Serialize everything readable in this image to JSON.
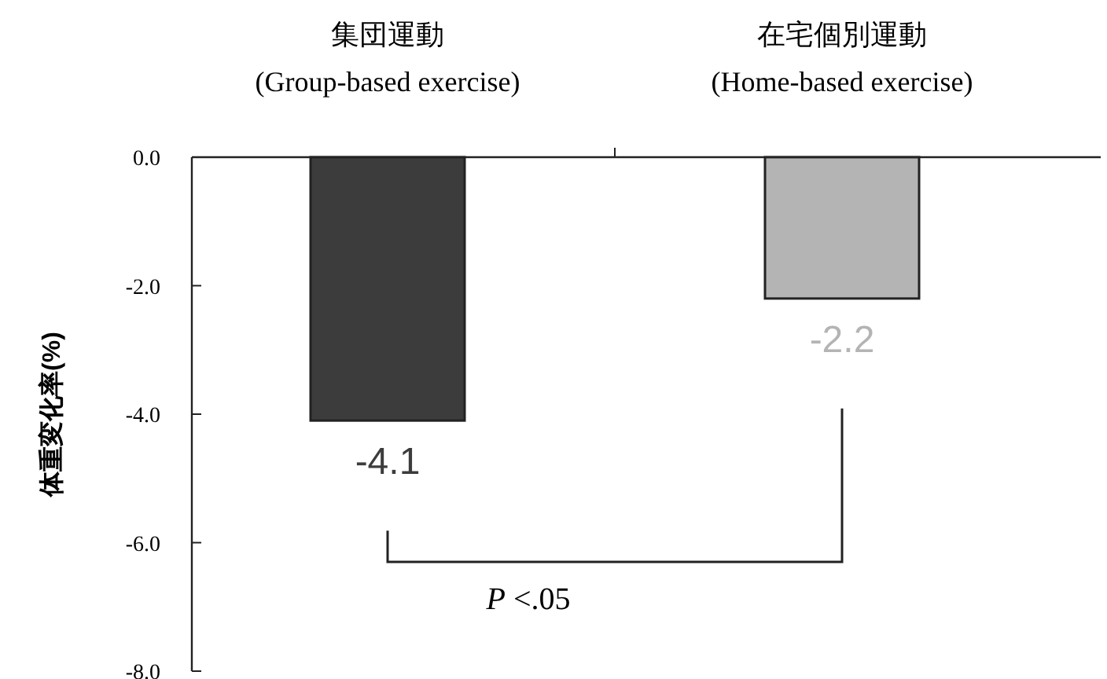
{
  "chart_data": {
    "type": "bar",
    "categories": [
      "集団運動\n(Group-based exercise)",
      "在宅個別運動\n(Home-based exercise)"
    ],
    "values": [
      -4.1,
      -2.2
    ],
    "colors": [
      "#3c3c3c",
      "#b4b4b4"
    ],
    "value_labels": [
      "-4.1",
      "-2.2"
    ],
    "ylabel": "体重変化率(%)",
    "ylim": [
      -8,
      0
    ],
    "yticks": [
      {
        "value": 0,
        "label": "0.0"
      },
      {
        "value": -2,
        "label": "-2.0"
      },
      {
        "value": -4,
        "label": "-4.0"
      },
      {
        "value": -6,
        "label": "-6.0"
      },
      {
        "value": -8,
        "label": "-8.0"
      }
    ],
    "annotations": [
      "*P* <.05"
    ]
  }
}
